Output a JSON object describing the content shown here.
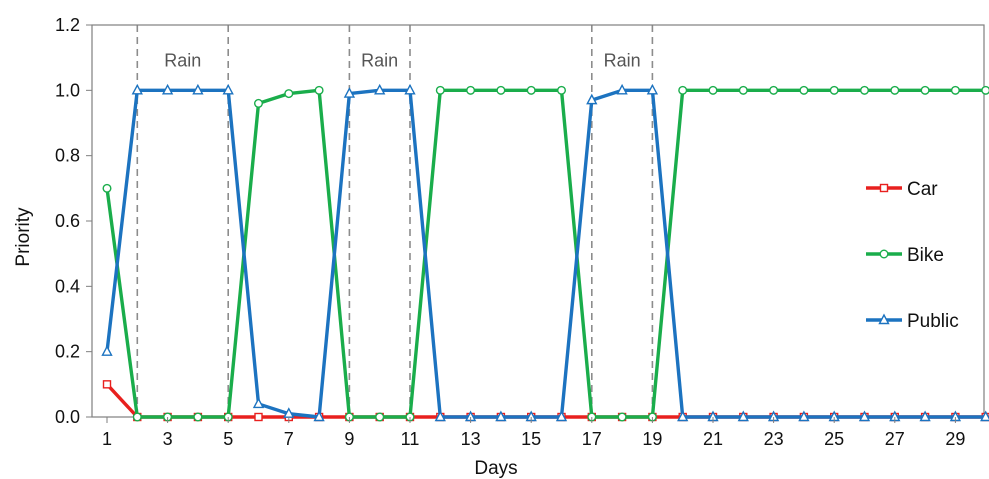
{
  "chart_data": {
    "type": "line",
    "xlabel": "Days",
    "ylabel": "Priority",
    "xlim": [
      0.5,
      30
    ],
    "ylim": [
      0,
      1.2
    ],
    "x_ticks": [
      1,
      3,
      5,
      7,
      9,
      11,
      13,
      15,
      17,
      19,
      21,
      23,
      25,
      27,
      29
    ],
    "y_ticks": [
      0.0,
      0.2,
      0.4,
      0.6,
      0.8,
      1.0,
      1.2
    ],
    "y_tick_labels": [
      "0.0",
      "0.2",
      "0.4",
      "0.6",
      "0.8",
      "1.0",
      "1.2"
    ],
    "grid": false,
    "legend_position": "right",
    "x": [
      1,
      2,
      3,
      4,
      5,
      6,
      7,
      8,
      9,
      10,
      11,
      12,
      13,
      14,
      15,
      16,
      17,
      18,
      19,
      20,
      21,
      22,
      23,
      24,
      25,
      26,
      27,
      28,
      29,
      30
    ],
    "series": [
      {
        "name": "Car",
        "color": "#e8201e",
        "marker": "square",
        "values": [
          0.1,
          0,
          0,
          0,
          0,
          0,
          0,
          0,
          0,
          0,
          0,
          0,
          0,
          0,
          0,
          0,
          0,
          0,
          0,
          0,
          0,
          0,
          0,
          0,
          0,
          0,
          0,
          0,
          0,
          0
        ]
      },
      {
        "name": "Bike",
        "color": "#1aad4b",
        "marker": "circle",
        "values": [
          0.7,
          0,
          0,
          0,
          0,
          0.96,
          0.99,
          1.0,
          0,
          0,
          0,
          1.0,
          1.0,
          1.0,
          1.0,
          1.0,
          0,
          0,
          0,
          1.0,
          1.0,
          1.0,
          1.0,
          1.0,
          1.0,
          1.0,
          1.0,
          1.0,
          1.0,
          1.0
        ]
      },
      {
        "name": "Public",
        "color": "#1c73c0",
        "marker": "triangle",
        "values": [
          0.2,
          1.0,
          1.0,
          1.0,
          1.0,
          0.04,
          0.01,
          0,
          0.99,
          1.0,
          1.0,
          0,
          0,
          0,
          0,
          0,
          0.97,
          1.0,
          1.0,
          0,
          0,
          0,
          0,
          0,
          0,
          0,
          0,
          0,
          0,
          0
        ]
      }
    ],
    "annotations": [
      {
        "type": "vertical_dashed_line",
        "x": 2
      },
      {
        "type": "vertical_dashed_line",
        "x": 5
      },
      {
        "type": "vertical_dashed_line",
        "x": 9
      },
      {
        "type": "vertical_dashed_line",
        "x": 11
      },
      {
        "type": "vertical_dashed_line",
        "x": 17
      },
      {
        "type": "vertical_dashed_line",
        "x": 19
      },
      {
        "type": "text",
        "text": "Rain",
        "x": 3.5,
        "y": 1.1
      },
      {
        "type": "text",
        "text": "Rain",
        "x": 10,
        "y": 1.1
      },
      {
        "type": "text",
        "text": "Rain",
        "x": 18,
        "y": 1.1
      }
    ]
  }
}
